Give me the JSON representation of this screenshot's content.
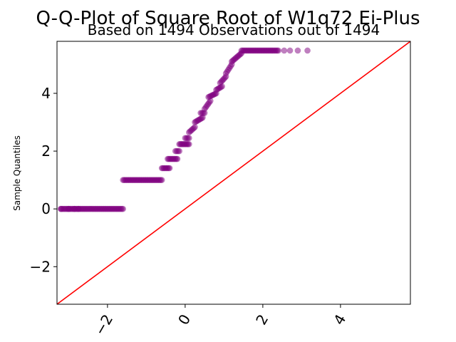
{
  "chart_data": {
    "type": "scatter",
    "title": "Q-Q-Plot of Square Root of W1q72 Ei-Plus",
    "subtitle": "Based on 1494 Observations out of 1494",
    "xlabel": "",
    "ylabel": "Sample Quantiles",
    "xlim": [
      -3.3,
      5.8
    ],
    "ylim": [
      -3.3,
      5.8
    ],
    "x_ticks": [
      -2,
      0,
      2,
      4
    ],
    "x_tick_labels": [
      "−2",
      "0",
      "2",
      "4"
    ],
    "y_ticks": [
      -2,
      0,
      2,
      4
    ],
    "y_tick_labels": [
      "−2",
      "0",
      "2",
      "4"
    ],
    "grid": false,
    "point_color": "#800080",
    "line_color": "#ff0000",
    "reference_line": {
      "slope": 1,
      "intercept": 0
    },
    "segments": [
      {
        "x_start": -3.2,
        "x_end": -1.6,
        "y_start": 0.0,
        "y_end": 0.0
      },
      {
        "x_start": -1.6,
        "x_end": -0.6,
        "y_start": 1.0,
        "y_end": 1.0
      },
      {
        "x_start": -0.6,
        "x_end": -0.4,
        "y_start": 1.41,
        "y_end": 1.41
      },
      {
        "x_start": -0.45,
        "x_end": -0.2,
        "y_start": 1.73,
        "y_end": 1.73
      },
      {
        "x_start": -0.25,
        "x_end": -0.15,
        "y_start": 2.0,
        "y_end": 2.0
      },
      {
        "x_start": -0.15,
        "x_end": 0.1,
        "y_start": 2.24,
        "y_end": 2.24
      },
      {
        "x_start": 0.0,
        "x_end": 0.1,
        "y_start": 2.45,
        "y_end": 2.45
      },
      {
        "x_start": 0.1,
        "x_end": 0.25,
        "y_start": 2.65,
        "y_end": 2.83
      },
      {
        "x_start": 0.25,
        "x_end": 0.45,
        "y_start": 3.0,
        "y_end": 3.16
      },
      {
        "x_start": 0.4,
        "x_end": 0.5,
        "y_start": 3.32,
        "y_end": 3.32
      },
      {
        "x_start": 0.5,
        "x_end": 0.65,
        "y_start": 3.46,
        "y_end": 3.74
      },
      {
        "x_start": 0.6,
        "x_end": 0.8,
        "y_start": 3.87,
        "y_end": 4.0
      },
      {
        "x_start": 0.8,
        "x_end": 0.95,
        "y_start": 4.12,
        "y_end": 4.24
      },
      {
        "x_start": 0.9,
        "x_end": 1.05,
        "y_start": 4.36,
        "y_end": 4.58
      },
      {
        "x_start": 1.05,
        "x_end": 1.2,
        "y_start": 4.69,
        "y_end": 5.0
      },
      {
        "x_start": 1.2,
        "x_end": 1.45,
        "y_start": 5.1,
        "y_end": 5.39
      },
      {
        "x_start": 1.45,
        "x_end": 2.4,
        "y_start": 5.48,
        "y_end": 5.48
      }
    ],
    "extra_points": [
      {
        "x": -3.2,
        "y": 0.0
      },
      {
        "x": -3.0,
        "y": 0.0
      },
      {
        "x": -2.85,
        "y": 0.0
      },
      {
        "x": -2.75,
        "y": 0.0
      },
      {
        "x": 2.55,
        "y": 5.48
      },
      {
        "x": 2.7,
        "y": 5.48
      },
      {
        "x": 2.9,
        "y": 5.48
      },
      {
        "x": 3.15,
        "y": 5.48
      }
    ]
  }
}
